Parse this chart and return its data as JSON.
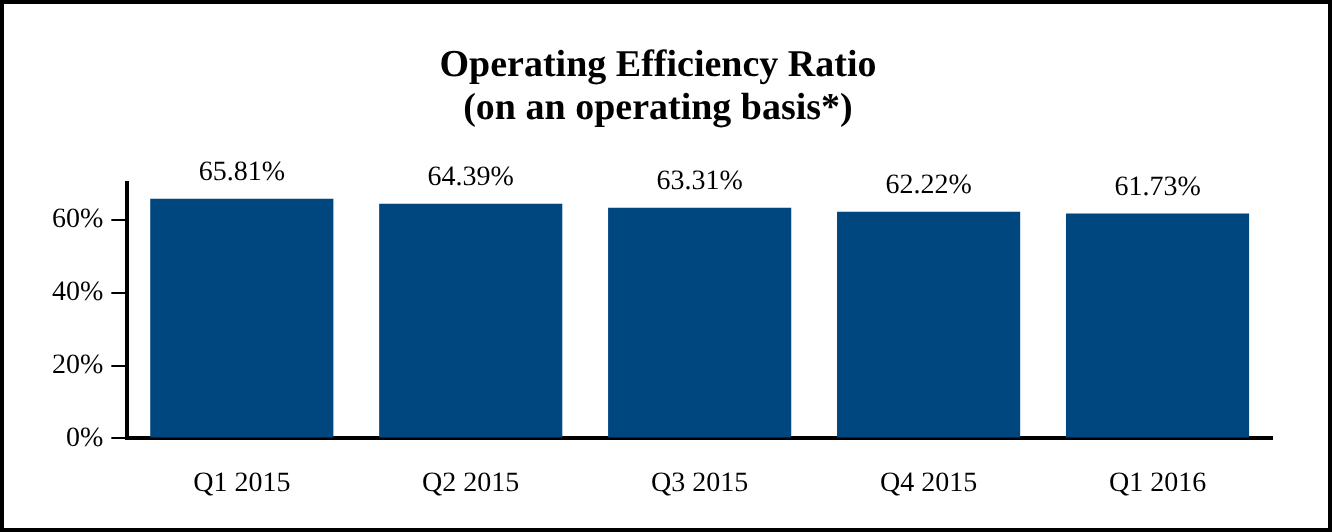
{
  "chart_data": {
    "type": "bar",
    "title": "Operating Efficiency Ratio\n(on an operating basis*)",
    "categories": [
      "Q1 2015",
      "Q2 2015",
      "Q3 2015",
      "Q4 2015",
      "Q1 2016"
    ],
    "values": [
      65.81,
      64.39,
      63.31,
      62.22,
      61.73
    ],
    "value_labels": [
      "65.81%",
      "64.39%",
      "63.31%",
      "62.22%",
      "61.73%"
    ],
    "color": "#00467f",
    "ylim": [
      0,
      70
    ],
    "yticks": [
      {
        "value": 0,
        "label": "0%"
      },
      {
        "value": 20,
        "label": "20%"
      },
      {
        "value": 40,
        "label": "40%"
      },
      {
        "value": 60,
        "label": "60%"
      }
    ],
    "grid": false,
    "legend": false
  }
}
